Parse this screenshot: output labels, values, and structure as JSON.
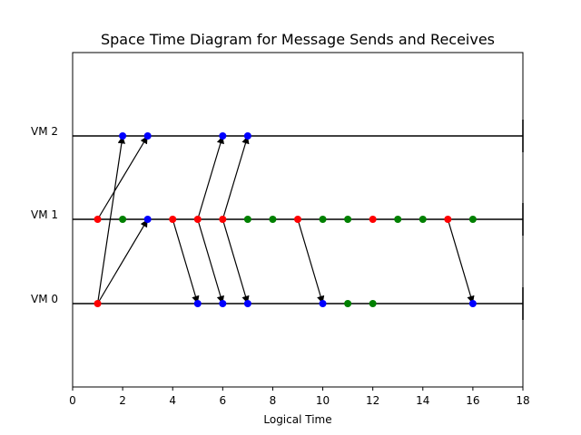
{
  "chart_data": {
    "type": "scatter",
    "title": "Space Time Diagram for Message Sends and Receives",
    "xlabel": "Logical Time",
    "ylabel": "",
    "xlim": [
      0,
      18
    ],
    "x_ticks": [
      0,
      2,
      4,
      6,
      8,
      10,
      12,
      14,
      16,
      18
    ],
    "grid": false,
    "lanes": [
      {
        "label": "VM 2",
        "y": 2
      },
      {
        "label": "VM 1",
        "y": 1
      },
      {
        "label": "VM 0",
        "y": 0
      }
    ],
    "colors": {
      "send": "#ff0000",
      "receive": "#0000ff",
      "internal": "#008000",
      "line": "#000000"
    },
    "events": [
      {
        "lane": 0,
        "t": 1,
        "kind": "send"
      },
      {
        "lane": 0,
        "t": 5,
        "kind": "receive"
      },
      {
        "lane": 0,
        "t": 6,
        "kind": "receive"
      },
      {
        "lane": 0,
        "t": 7,
        "kind": "receive"
      },
      {
        "lane": 0,
        "t": 10,
        "kind": "receive"
      },
      {
        "lane": 0,
        "t": 11,
        "kind": "internal"
      },
      {
        "lane": 0,
        "t": 12,
        "kind": "internal"
      },
      {
        "lane": 0,
        "t": 16,
        "kind": "receive"
      },
      {
        "lane": 1,
        "t": 1,
        "kind": "send"
      },
      {
        "lane": 1,
        "t": 2,
        "kind": "internal"
      },
      {
        "lane": 1,
        "t": 3,
        "kind": "receive"
      },
      {
        "lane": 1,
        "t": 4,
        "kind": "send"
      },
      {
        "lane": 1,
        "t": 5,
        "kind": "send"
      },
      {
        "lane": 1,
        "t": 6,
        "kind": "send"
      },
      {
        "lane": 1,
        "t": 7,
        "kind": "internal"
      },
      {
        "lane": 1,
        "t": 8,
        "kind": "internal"
      },
      {
        "lane": 1,
        "t": 9,
        "kind": "send"
      },
      {
        "lane": 1,
        "t": 10,
        "kind": "internal"
      },
      {
        "lane": 1,
        "t": 11,
        "kind": "internal"
      },
      {
        "lane": 1,
        "t": 12,
        "kind": "send"
      },
      {
        "lane": 1,
        "t": 13,
        "kind": "internal"
      },
      {
        "lane": 1,
        "t": 14,
        "kind": "internal"
      },
      {
        "lane": 1,
        "t": 15,
        "kind": "send"
      },
      {
        "lane": 1,
        "t": 16,
        "kind": "internal"
      },
      {
        "lane": 2,
        "t": 2,
        "kind": "receive"
      },
      {
        "lane": 2,
        "t": 3,
        "kind": "receive"
      },
      {
        "lane": 2,
        "t": 6,
        "kind": "receive"
      },
      {
        "lane": 2,
        "t": 7,
        "kind": "receive"
      }
    ],
    "messages": [
      {
        "from_lane": 0,
        "from_t": 1,
        "to_lane": 2,
        "to_t": 2
      },
      {
        "from_lane": 1,
        "from_t": 1,
        "to_lane": 2,
        "to_t": 3
      },
      {
        "from_lane": 0,
        "from_t": 1,
        "to_lane": 1,
        "to_t": 3
      },
      {
        "from_lane": 1,
        "from_t": 4,
        "to_lane": 0,
        "to_t": 5
      },
      {
        "from_lane": 1,
        "from_t": 5,
        "to_lane": 2,
        "to_t": 6
      },
      {
        "from_lane": 1,
        "from_t": 5,
        "to_lane": 0,
        "to_t": 6
      },
      {
        "from_lane": 1,
        "from_t": 6,
        "to_lane": 2,
        "to_t": 7
      },
      {
        "from_lane": 1,
        "from_t": 6,
        "to_lane": 0,
        "to_t": 7
      },
      {
        "from_lane": 1,
        "from_t": 9,
        "to_lane": 0,
        "to_t": 10
      },
      {
        "from_lane": 1,
        "from_t": 15,
        "to_lane": 0,
        "to_t": 16
      }
    ]
  }
}
